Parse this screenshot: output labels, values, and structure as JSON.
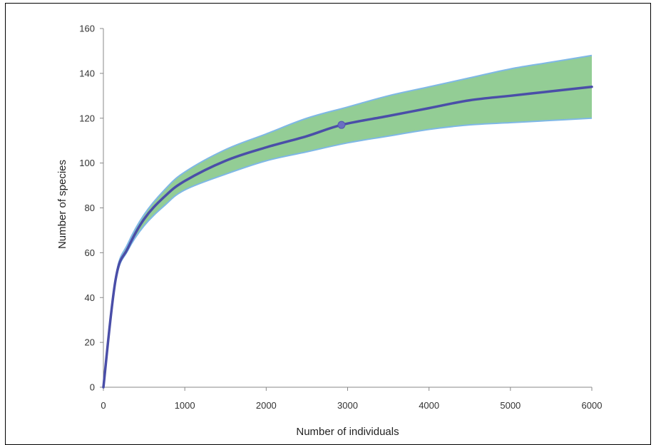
{
  "chart_data": {
    "type": "line",
    "title": "",
    "xlabel": "Number of individuals",
    "ylabel": "Number of species",
    "xlim": [
      0,
      6000
    ],
    "ylim": [
      0,
      160
    ],
    "xticks": [
      "0",
      "1000",
      "2000",
      "3000",
      "4000",
      "5000",
      "6000"
    ],
    "yticks": [
      "0",
      "20",
      "40",
      "60",
      "80",
      "100",
      "120",
      "140",
      "160"
    ],
    "grid": false,
    "legend": "none",
    "colors": {
      "line": "#4a4ea8",
      "band_fill": "#93cd95",
      "band_edge": "#7fb8e6",
      "axis": "#888888"
    },
    "series": [
      {
        "values": [
          [
            0,
            0
          ],
          [
            150,
            48
          ],
          [
            300,
            62
          ],
          [
            500,
            75
          ],
          [
            750,
            85
          ],
          [
            1000,
            92
          ],
          [
            1500,
            101
          ],
          [
            2000,
            107
          ],
          [
            2500,
            112
          ],
          [
            2925,
            117
          ],
          [
            3500,
            121
          ],
          [
            4000,
            124.5
          ],
          [
            4500,
            128
          ],
          [
            5000,
            130
          ],
          [
            5500,
            132
          ],
          [
            6000,
            134
          ]
        ]
      }
    ],
    "confidence_band": {
      "upper": [
        [
          0,
          0
        ],
        [
          150,
          49
        ],
        [
          300,
          64
        ],
        [
          500,
          77
        ],
        [
          750,
          88
        ],
        [
          1000,
          96
        ],
        [
          1500,
          106
        ],
        [
          2000,
          113
        ],
        [
          2500,
          120
        ],
        [
          3000,
          125
        ],
        [
          3500,
          130
        ],
        [
          4000,
          134
        ],
        [
          4500,
          138
        ],
        [
          5000,
          142
        ],
        [
          5500,
          145
        ],
        [
          6000,
          148
        ]
      ],
      "lower": [
        [
          0,
          0
        ],
        [
          150,
          47
        ],
        [
          300,
          61
        ],
        [
          500,
          72
        ],
        [
          750,
          81
        ],
        [
          1000,
          88
        ],
        [
          1500,
          95
        ],
        [
          2000,
          101
        ],
        [
          2500,
          105
        ],
        [
          3000,
          109
        ],
        [
          3500,
          112
        ],
        [
          4000,
          115
        ],
        [
          4500,
          117
        ],
        [
          5000,
          118
        ],
        [
          5500,
          119
        ],
        [
          6000,
          120
        ]
      ]
    },
    "annotations": [
      {
        "type": "marker",
        "x": 2925,
        "y": 117
      }
    ]
  }
}
